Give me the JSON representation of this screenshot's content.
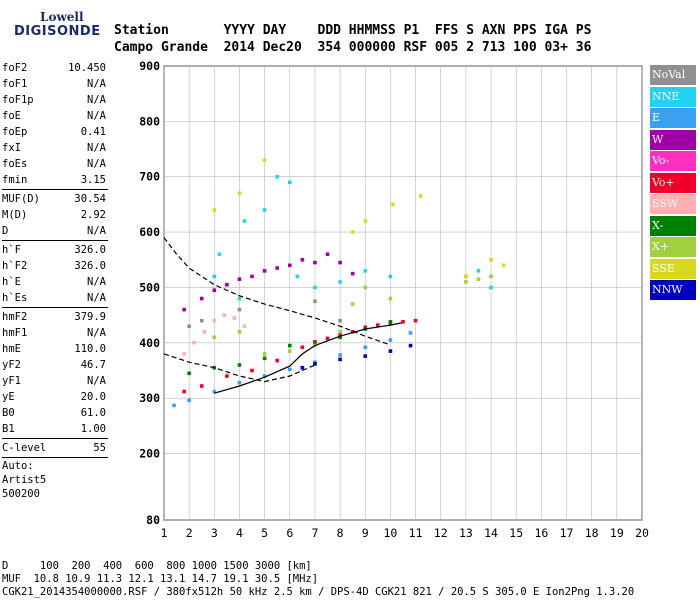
{
  "logo": {
    "line1": "Lowell",
    "line2": "DIGISONDE"
  },
  "header": {
    "line1": "Station       YYYY DAY    DDD HHMMSS P1  FFS S AXN PPS IGA PS",
    "line2": "Campo Grande  2014 Dec20  354 000000 RSF 005 2 713 100 03+ 36"
  },
  "params": {
    "group1": [
      {
        "k": "foF2",
        "v": "10.450"
      },
      {
        "k": "foF1",
        "v": "N/A"
      },
      {
        "k": "foF1p",
        "v": "N/A"
      },
      {
        "k": "foE",
        "v": "N/A"
      },
      {
        "k": "foEp",
        "v": "0.41"
      },
      {
        "k": "fxI",
        "v": "N/A"
      },
      {
        "k": "foEs",
        "v": "N/A"
      },
      {
        "k": "fmin",
        "v": "3.15"
      }
    ],
    "group2": [
      {
        "k": "MUF(D)",
        "v": "30.54"
      },
      {
        "k": "M(D)",
        "v": "2.92"
      },
      {
        "k": "D",
        "v": "N/A"
      }
    ],
    "group3": [
      {
        "k": "h`F",
        "v": "326.0"
      },
      {
        "k": "h`F2",
        "v": "326.0"
      },
      {
        "k": "h`E",
        "v": "N/A"
      },
      {
        "k": "h`Es",
        "v": "N/A"
      }
    ],
    "group4": [
      {
        "k": "hmF2",
        "v": "379.9"
      },
      {
        "k": "hmF1",
        "v": "N/A"
      },
      {
        "k": "hmE",
        "v": "110.0"
      },
      {
        "k": "yF2",
        "v": "46.7"
      },
      {
        "k": "yF1",
        "v": "N/A"
      },
      {
        "k": "yE",
        "v": "20.0"
      },
      {
        "k": "B0",
        "v": "61.0"
      },
      {
        "k": "B1",
        "v": "1.00"
      }
    ],
    "group5": [
      {
        "k": "C-level",
        "v": "55"
      }
    ],
    "auto": [
      "Auto:",
      "Artist5",
      "500200"
    ]
  },
  "legend": [
    {
      "label": "NoVal",
      "color": "#909090"
    },
    {
      "label": "NNE",
      "color": "#22d2f0"
    },
    {
      "label": "E",
      "color": "#3aa0f0"
    },
    {
      "label": "W",
      "color": "#a000a8"
    },
    {
      "label": "Vo-",
      "color": "#ff30c0"
    },
    {
      "label": "Vo+",
      "color": "#f00028"
    },
    {
      "label": "SSW",
      "color": "#ffb0b0"
    },
    {
      "label": "X-",
      "color": "#008000"
    },
    {
      "label": "X+",
      "color": "#a0d040"
    },
    {
      "label": "SSE",
      "color": "#d8d820"
    },
    {
      "label": "NNW",
      "color": "#0000c0"
    }
  ],
  "footer": {
    "line1": "D     100  200  400  600  800 1000 1500 3000 [km]",
    "line2": "MUF  10.8 10.9 11.3 12.1 13.1 14.7 19.1 30.5 [MHz]",
    "line3": "CGK21_2014354000000.RSF / 380fx512h 50 kHz 2.5 km / DPS-4D CGK21 821 / 20.5 S 305.0 E Ion2Png 1.3.20"
  },
  "chart_data": {
    "type": "scatter",
    "title": "",
    "xlabel": "",
    "ylabel": "",
    "xlim": [
      1,
      20
    ],
    "ylim": [
      80,
      900
    ],
    "x_ticks": [
      1,
      2,
      3,
      4,
      5,
      6,
      7,
      8,
      9,
      10,
      11,
      12,
      13,
      14,
      15,
      16,
      17,
      18,
      19,
      20
    ],
    "y_ticks": [
      80,
      200,
      300,
      400,
      500,
      600,
      700,
      800,
      900
    ],
    "series": [
      {
        "name": "E",
        "color": "#3aa0f0",
        "points": [
          [
            1.4,
            287
          ],
          [
            2,
            296
          ],
          [
            3,
            312
          ],
          [
            4,
            328
          ],
          [
            5,
            340
          ],
          [
            6,
            352
          ],
          [
            7,
            365
          ],
          [
            8,
            378
          ],
          [
            9,
            392
          ],
          [
            10,
            405
          ],
          [
            10.8,
            418
          ]
        ]
      },
      {
        "name": "NNW",
        "color": "#0000c0",
        "points": [
          [
            6.5,
            355
          ],
          [
            7,
            362
          ],
          [
            8,
            370
          ],
          [
            9,
            376
          ],
          [
            10,
            385
          ],
          [
            10.8,
            395
          ]
        ]
      },
      {
        "name": "Vo+",
        "color": "#f00028",
        "points": [
          [
            1.8,
            312
          ],
          [
            2.5,
            322
          ],
          [
            3.5,
            340
          ],
          [
            4.5,
            350
          ],
          [
            5.5,
            368
          ],
          [
            6.5,
            392
          ],
          [
            7,
            402
          ],
          [
            7.5,
            408
          ],
          [
            8,
            415
          ],
          [
            8.5,
            420
          ],
          [
            9,
            428
          ],
          [
            9.5,
            432
          ],
          [
            10,
            435
          ],
          [
            10.5,
            438
          ],
          [
            11,
            440
          ]
        ]
      },
      {
        "name": "W",
        "color": "#a000a8",
        "points": [
          [
            1.8,
            460
          ],
          [
            2.5,
            480
          ],
          [
            3,
            495
          ],
          [
            3.5,
            505
          ],
          [
            4,
            515
          ],
          [
            4.5,
            520
          ],
          [
            5,
            530
          ],
          [
            5.5,
            535
          ],
          [
            6,
            540
          ],
          [
            6.5,
            550
          ],
          [
            7,
            545
          ],
          [
            7.5,
            560
          ],
          [
            8,
            545
          ],
          [
            8.5,
            525
          ]
        ]
      },
      {
        "name": "SSW",
        "color": "#ffb0b0",
        "points": [
          [
            1.8,
            380
          ],
          [
            2.2,
            400
          ],
          [
            2.6,
            420
          ],
          [
            3,
            440
          ],
          [
            3.4,
            450
          ],
          [
            3.8,
            445
          ],
          [
            4.2,
            430
          ]
        ]
      },
      {
        "name": "NNE",
        "color": "#22d2f0",
        "points": [
          [
            3,
            520
          ],
          [
            3.2,
            560
          ],
          [
            4,
            480
          ],
          [
            4.2,
            620
          ],
          [
            5,
            640
          ],
          [
            5.5,
            700
          ],
          [
            6,
            690
          ],
          [
            6.3,
            520
          ],
          [
            7,
            500
          ],
          [
            8,
            510
          ],
          [
            9,
            530
          ],
          [
            10,
            520
          ],
          [
            13,
            520
          ],
          [
            13.5,
            530
          ],
          [
            14,
            500
          ]
        ]
      },
      {
        "name": "X-",
        "color": "#008000",
        "points": [
          [
            2,
            345
          ],
          [
            3,
            355
          ],
          [
            4,
            360
          ],
          [
            5,
            372
          ],
          [
            6,
            395
          ],
          [
            7,
            398
          ],
          [
            8,
            410
          ],
          [
            9,
            425
          ],
          [
            10,
            438
          ]
        ]
      },
      {
        "name": "X+",
        "color": "#a0d040",
        "points": [
          [
            3,
            410
          ],
          [
            4,
            420
          ],
          [
            5,
            380
          ],
          [
            6,
            385
          ],
          [
            7,
            395
          ],
          [
            8,
            420
          ],
          [
            8.5,
            470
          ],
          [
            9,
            500
          ],
          [
            10,
            480
          ],
          [
            13,
            510
          ],
          [
            13.5,
            515
          ],
          [
            14,
            520
          ]
        ]
      },
      {
        "name": "SSE",
        "color": "#d8d820",
        "points": [
          [
            3,
            640
          ],
          [
            4,
            670
          ],
          [
            5,
            730
          ],
          [
            8.5,
            600
          ],
          [
            9,
            620
          ],
          [
            10.1,
            650
          ],
          [
            11.2,
            665
          ],
          [
            14,
            550
          ],
          [
            14.5,
            540
          ],
          [
            13,
            520
          ]
        ]
      },
      {
        "name": "NoVal",
        "color": "#909090",
        "points": [
          [
            2,
            430
          ],
          [
            2.5,
            440
          ],
          [
            4,
            460
          ],
          [
            7,
            475
          ],
          [
            8,
            440
          ]
        ]
      }
    ],
    "profile_lines": [
      {
        "name": "h`F trace (solid)",
        "color": "#000000",
        "points": [
          [
            3,
            309
          ],
          [
            4,
            322
          ],
          [
            5,
            338
          ],
          [
            6,
            358
          ],
          [
            6.5,
            380
          ],
          [
            7,
            395
          ],
          [
            8,
            412
          ],
          [
            9,
            425
          ],
          [
            10,
            432
          ],
          [
            10.45,
            436
          ]
        ]
      },
      {
        "name": "profile (dashed)",
        "color": "#000000",
        "points": [
          [
            1,
            380
          ],
          [
            2,
            365
          ],
          [
            3,
            355
          ],
          [
            4,
            340
          ],
          [
            5,
            330
          ],
          [
            6,
            340
          ],
          [
            7,
            360
          ]
        ]
      },
      {
        "name": "profile upper (dashed)",
        "color": "#000000",
        "points": [
          [
            1,
            590
          ],
          [
            1.5,
            560
          ],
          [
            2,
            535
          ],
          [
            3,
            505
          ],
          [
            4,
            485
          ],
          [
            5,
            470
          ],
          [
            6,
            458
          ],
          [
            7,
            445
          ],
          [
            8,
            430
          ],
          [
            9,
            412
          ],
          [
            10,
            396
          ]
        ]
      }
    ],
    "grid": true
  }
}
